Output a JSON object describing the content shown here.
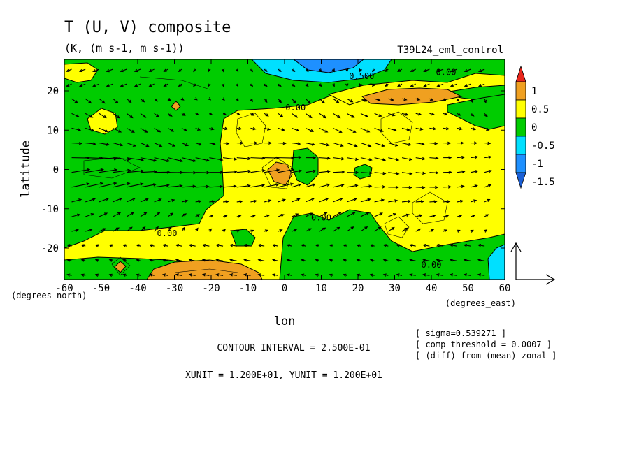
{
  "chart_data": {
    "type": "contour",
    "title": "T (U, V) composite",
    "subtitle": "(K, (m s-1, m s-1))",
    "run_label": "T39L24_eml_control",
    "xlabel": "lon",
    "ylabel": "latitude",
    "x_unit_label": "(degrees_east)",
    "y_unit_label": "(degrees_north)",
    "xlim": [
      -60,
      60
    ],
    "ylim": [
      -28,
      28
    ],
    "x_ticks": [
      "-60",
      "-50",
      "-40",
      "-30",
      "-20",
      "-10",
      "0",
      "10",
      "20",
      "30",
      "40",
      "50",
      "60"
    ],
    "x_tick_values": [
      -60,
      -50,
      -40,
      -30,
      -20,
      -10,
      0,
      10,
      20,
      30,
      40,
      50,
      60
    ],
    "y_ticks": [
      "20",
      "10",
      "0",
      "-10",
      "-20"
    ],
    "y_tick_values": [
      20,
      10,
      0,
      -10,
      -20
    ],
    "colorbar": {
      "labels": [
        "1",
        "0.5",
        "0",
        "-0.5",
        "-1",
        "-1.5"
      ],
      "levels": [
        1,
        0.5,
        0,
        -0.5,
        -1,
        -1.5
      ],
      "colors": [
        "#e8261c",
        "#f0a020",
        "#ffff00",
        "#00cc00",
        "#00e0ff",
        "#1e90ff",
        "#1a5fd6"
      ]
    },
    "contour_labels": [
      {
        "text": "0.500",
        "lon": 21,
        "lat": 23
      },
      {
        "text": "0.00",
        "lon": 44,
        "lat": 24
      },
      {
        "text": "0.00",
        "lon": 3,
        "lat": 15
      },
      {
        "text": "0.00",
        "lon": 10,
        "lat": -13
      },
      {
        "text": "0.00",
        "lon": -32,
        "lat": -17
      },
      {
        "text": "0.00",
        "lon": 40,
        "lat": -25
      }
    ],
    "vector_reference": {
      "u": 12,
      "v": 12
    },
    "notes": {
      "contour_interval": "CONTOUR INTERVAL = 2.500E-01",
      "units": "XUNIT = 1.200E+01, YUNIT = 1.200E+01",
      "sigma": "[ sigma=0.539271 ]",
      "comp_threshold": "[ comp threshold = 0.0007 ]",
      "diff": "[ (diff) from (mean) zonal ]"
    }
  }
}
